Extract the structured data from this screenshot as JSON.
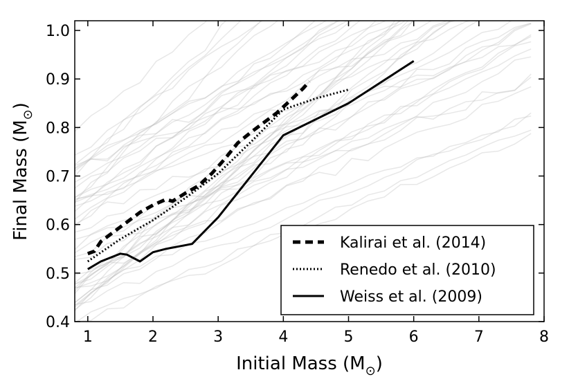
{
  "chart_data": {
    "type": "line",
    "xlabel": "Initial Mass (M",
    "xlabel_sub": "⊙",
    "xlabel_end": ")",
    "ylabel": "Final Mass (M",
    "ylabel_sub": "⊙",
    "ylabel_end": ")",
    "xlim": [
      0.8,
      8
    ],
    "ylim": [
      0.4,
      1.02
    ],
    "xticks": [
      1,
      2,
      3,
      4,
      5,
      6,
      7,
      8
    ],
    "yticks": [
      0.4,
      0.5,
      0.6,
      0.7,
      0.8,
      0.9,
      1.0
    ],
    "xtick_labels": [
      "1",
      "2",
      "3",
      "4",
      "5",
      "6",
      "7",
      "8"
    ],
    "ytick_labels": [
      "0.4",
      "0.5",
      "0.6",
      "0.7",
      "0.8",
      "0.9",
      "1.0"
    ],
    "grid": false,
    "legend_position": "lower-right",
    "series": [
      {
        "name": "Kalirai et al. (2014)",
        "style": "dashed",
        "color": "#000000",
        "x": [
          1.0,
          1.1,
          1.2,
          1.4,
          1.6,
          1.8,
          2.0,
          2.2,
          2.3,
          2.5,
          2.7,
          2.9,
          3.1,
          3.3,
          3.5,
          3.7,
          3.9,
          4.1,
          4.3,
          4.4
        ],
        "y": [
          0.54,
          0.545,
          0.565,
          0.585,
          0.605,
          0.625,
          0.64,
          0.652,
          0.648,
          0.665,
          0.68,
          0.705,
          0.735,
          0.768,
          0.79,
          0.81,
          0.83,
          0.855,
          0.88,
          0.895
        ]
      },
      {
        "name": "Renedo et al. (2010)",
        "style": "dotted",
        "color": "#000000",
        "x": [
          1.0,
          1.5,
          2.0,
          2.5,
          3.0,
          3.5,
          4.0,
          4.5,
          5.0
        ],
        "y": [
          0.524,
          0.57,
          0.609,
          0.655,
          0.705,
          0.77,
          0.837,
          0.86,
          0.878
        ]
      },
      {
        "name": "Weiss et al. (2009)",
        "style": "solid",
        "color": "#000000",
        "x": [
          1.0,
          1.2,
          1.5,
          1.6,
          1.8,
          2.0,
          2.2,
          2.6,
          3.0,
          4.0,
          5.0,
          6.0
        ],
        "y": [
          0.508,
          0.524,
          0.54,
          0.538,
          0.524,
          0.543,
          0.55,
          0.56,
          0.615,
          0.784,
          0.85,
          0.937
        ]
      }
    ],
    "background_tracks": {
      "color": "#bbbbbb",
      "count": 45,
      "description_free": true
    }
  }
}
